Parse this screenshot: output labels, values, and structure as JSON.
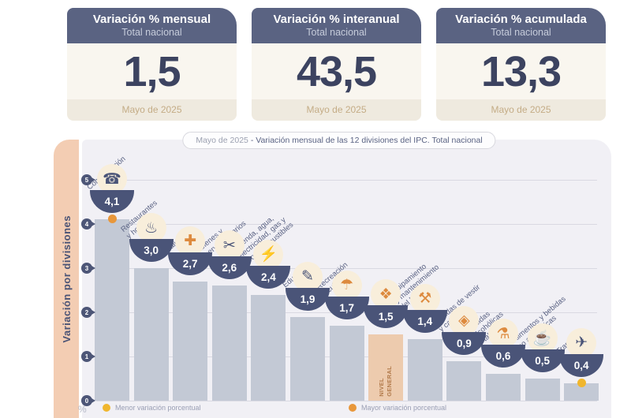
{
  "cards": [
    {
      "title": "Variación % mensual",
      "subtitle": "Total nacional",
      "value": "1,5",
      "period": "Mayo de 2025"
    },
    {
      "title": "Variación % interanual",
      "subtitle": "Total nacional",
      "value": "43,5",
      "period": "Mayo de 2025"
    },
    {
      "title": "Variación % acumulada",
      "subtitle": "Total nacional",
      "value": "13,3",
      "period": "Mayo de 2025"
    }
  ],
  "chart": {
    "title_period": "Mayo de 2025",
    "title_rest": "- Variación mensual de las 12 divisiones del IPC. Total nacional",
    "axis_label": "Variación por divisiones",
    "unit_label": "%",
    "y_ticks": [
      5,
      4,
      3,
      2,
      1,
      0
    ],
    "legend": [
      {
        "label": "Menor variación porcentual",
        "color": "#F0B62E"
      },
      {
        "label": "Mayor variación porcentual",
        "color": "#E8973B"
      }
    ],
    "colors": {
      "bar": "#C3C9D5",
      "bar_general": "#EDCBAE",
      "bowl": "#4A5478",
      "grid": "#D9D9E2",
      "panel": "#F1F0F5",
      "band": "#F3CDB3",
      "icon_navy": "#4A5478",
      "icon_orange": "#DD8A3E",
      "dot_menor": "#F0B62E",
      "dot_mayor": "#E8973B"
    },
    "divisions": [
      {
        "name": "Comunicación",
        "label": "Comunicación",
        "value": 4.1,
        "display": "4,1",
        "icon": "☎",
        "icon_name": "phone-icon",
        "icon_color": "navy",
        "dot": "mayor",
        "general": false
      },
      {
        "name": "Restaurantes y hoteles",
        "label": "Restaurantes\ny hoteles",
        "value": 3.0,
        "display": "3,0",
        "icon": "♨",
        "icon_name": "restaurant-icon",
        "icon_color": "navy",
        "dot": null,
        "general": false
      },
      {
        "name": "Salud",
        "label": "Salud",
        "value": 2.7,
        "display": "2,7",
        "icon": "✚",
        "icon_name": "health-cross-icon",
        "icon_color": "orange",
        "dot": null,
        "general": false
      },
      {
        "name": "Bienes y servicios varios",
        "label": "Bienes y\nservicios varios",
        "value": 2.6,
        "display": "2,6",
        "icon": "✂",
        "icon_name": "scissors-icon",
        "icon_color": "navy",
        "dot": null,
        "general": false
      },
      {
        "name": "Vivienda, agua, electricidad, gas y otros combustibles",
        "label": "Vivienda, agua,\nelectricidad, gas y\notros combustibles",
        "value": 2.4,
        "display": "2,4",
        "icon": "⚡",
        "icon_name": "utilities-bulb-icon",
        "icon_color": "navy",
        "dot": null,
        "general": false
      },
      {
        "name": "Educación",
        "label": "Educación",
        "value": 1.9,
        "display": "1,9",
        "icon": "✎",
        "icon_name": "education-book-icon",
        "icon_color": "navy",
        "dot": null,
        "general": false
      },
      {
        "name": "Recreación y cultura",
        "label": "Recreación\ny cultura",
        "value": 1.7,
        "display": "1,7",
        "icon": "☂",
        "icon_name": "beach-umbrella-icon",
        "icon_color": "orange",
        "dot": null,
        "general": false
      },
      {
        "name": "Nivel general",
        "label": "",
        "value": 1.5,
        "display": "1,5",
        "icon": "❖",
        "icon_name": "shopping-basket-icon",
        "icon_color": "orange",
        "dot": null,
        "general": true,
        "inner_label": "NIVEL\nGENERAL"
      },
      {
        "name": "Equipamiento y mantenimiento del hogar",
        "label": "Equipamiento\ny mantenimiento\ndel hogar",
        "value": 1.4,
        "display": "1,4",
        "icon": "⚒",
        "icon_name": "home-equipment-icon",
        "icon_color": "orange",
        "dot": null,
        "general": false
      },
      {
        "name": "Prendas de vestir y calzado",
        "label": "Prendas de vestir\ny calzado",
        "value": 0.9,
        "display": "0,9",
        "icon": "◈",
        "icon_name": "tshirt-icon",
        "icon_color": "orange",
        "dot": null,
        "general": false
      },
      {
        "name": "Bebidas alcohólicas y tabaco",
        "label": "Bebidas\nalcohólicas\ny tabaco",
        "value": 0.6,
        "display": "0,6",
        "icon": "⚗",
        "icon_name": "drinks-bottle-icon",
        "icon_color": "orange",
        "dot": null,
        "general": false
      },
      {
        "name": "Alimentos y bebidas no alcohólicas",
        "label": "Alimentos y bebidas\nno alcohólicas",
        "value": 0.5,
        "display": "0,5",
        "icon": "☕",
        "icon_name": "food-icon",
        "icon_color": "orange",
        "dot": null,
        "general": false
      },
      {
        "name": "Transporte",
        "label": "Transporte",
        "value": 0.4,
        "display": "0,4",
        "icon": "✈",
        "icon_name": "bus-icon",
        "icon_color": "navy",
        "dot": "menor",
        "general": false
      }
    ]
  },
  "chart_data": {
    "type": "bar",
    "title": "Mayo de 2025 - Variación mensual de las 12 divisiones del IPC. Total nacional",
    "xlabel": "",
    "ylabel": "Variación por divisiones",
    "ylim": [
      0,
      5
    ],
    "grid": true,
    "unit": "%",
    "categories": [
      "Comunicación",
      "Restaurantes y hoteles",
      "Salud",
      "Bienes y servicios varios",
      "Vivienda, agua, electricidad, gas y otros combustibles",
      "Educación",
      "Recreación y cultura",
      "Nivel general",
      "Equipamiento y mantenimiento del hogar",
      "Prendas de vestir y calzado",
      "Bebidas alcohólicas y tabaco",
      "Alimentos y bebidas no alcohólicas",
      "Transporte"
    ],
    "values": [
      4.1,
      3.0,
      2.7,
      2.6,
      2.4,
      1.9,
      1.7,
      1.5,
      1.4,
      0.9,
      0.6,
      0.5,
      0.4
    ],
    "display_values": [
      "4,1",
      "3,0",
      "2,7",
      "2,6",
      "2,4",
      "1,9",
      "1,7",
      "1,5",
      "1,4",
      "0,9",
      "0,6",
      "0,5",
      "0,4"
    ],
    "highlight": {
      "mayor_variacion": "Comunicación",
      "menor_variacion": "Transporte"
    },
    "legend_position": "bottom",
    "summary": {
      "mensual": "1,5",
      "interanual": "43,5",
      "acumulada": "13,3",
      "period": "Mayo de 2025"
    }
  }
}
